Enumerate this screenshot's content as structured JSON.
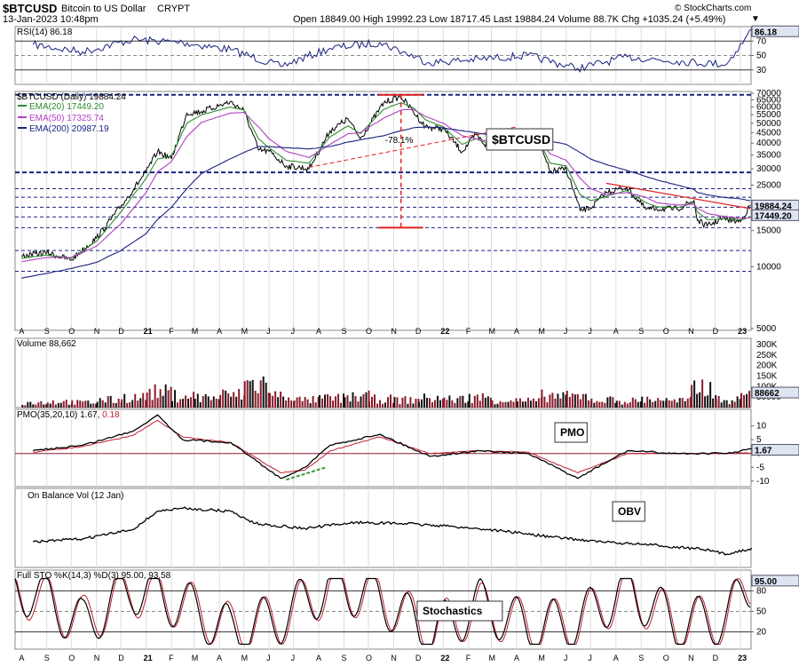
{
  "header": {
    "symbol": "$BTCUSD",
    "name": "Bitcoin to US Dollar",
    "exchange": "CRYPT",
    "datetime": "13-Jan-2023 10:48pm",
    "quote": "Open 18849.00  High 19992.23  Low 18717.45  Last 19884.24  Volume 88.7K  Chg +1035.24 (+5.49%)",
    "credit": "© StockCharts.com"
  },
  "colors": {
    "price": "#000000",
    "ema20": "#2e8b2e",
    "ema50": "#b040c0",
    "ema200": "#1a2280",
    "volume": "#8b1a2a",
    "signal": "#c02030",
    "annotation_red": "#e02020",
    "annotation_green": "#3a9a3a",
    "hline": "#1a2280",
    "panel_bg": "#ffffff",
    "tag_bg": "#dde4f2"
  },
  "chart_data": [
    {
      "panel": "rsi",
      "type": "line",
      "title": "RSI(14) 86.18",
      "last_value_tag": "86.18",
      "ylim": [
        10,
        90
      ],
      "y_ticks": [
        70,
        50,
        30
      ],
      "reference_lines": [
        70,
        50,
        30
      ],
      "x": [
        "2020-08",
        "2020-10",
        "2020-12",
        "2021-02",
        "2021-04",
        "2021-06",
        "2021-08",
        "2021-10",
        "2021-12",
        "2022-02",
        "2022-04",
        "2022-06",
        "2022-08",
        "2022-10",
        "2022-12",
        "2023-01"
      ],
      "values": [
        65,
        55,
        72,
        68,
        58,
        35,
        60,
        68,
        40,
        45,
        50,
        32,
        48,
        42,
        38,
        86
      ]
    },
    {
      "panel": "price",
      "type": "line",
      "title": "$BTCUSD (Daily) 19884.24",
      "label_box": "$BTCUSD",
      "scale": "log",
      "ylim": [
        5000,
        70000
      ],
      "y_ticks": [
        70000,
        65000,
        60000,
        55000,
        50000,
        45000,
        40000,
        35000,
        30000,
        25000,
        20000,
        15000,
        10000,
        5000
      ],
      "tags": [
        "19884.24",
        "17449.20"
      ],
      "x": [
        "2020-08-01",
        "2020-09-01",
        "2020-10-01",
        "2020-11-01",
        "2020-12-01",
        "2021-01-01",
        "2021-01-15",
        "2021-02-01",
        "2021-02-20",
        "2021-03-10",
        "2021-04-14",
        "2021-05-01",
        "2021-05-19",
        "2021-06-01",
        "2021-06-22",
        "2021-07-20",
        "2021-08-15",
        "2021-09-06",
        "2021-09-21",
        "2021-10-20",
        "2021-11-10",
        "2021-11-25",
        "2021-12-10",
        "2022-01-01",
        "2022-01-24",
        "2022-02-10",
        "2022-02-24",
        "2022-03-28",
        "2022-04-15",
        "2022-05-01",
        "2022-05-12",
        "2022-06-01",
        "2022-06-18",
        "2022-07-01",
        "2022-07-20",
        "2022-08-14",
        "2022-09-07",
        "2022-09-20",
        "2022-10-15",
        "2022-11-05",
        "2022-11-09",
        "2022-11-21",
        "2022-12-10",
        "2023-01-01",
        "2023-01-13"
      ],
      "series": [
        {
          "name": "$BTCUSD",
          "values": [
            11300,
            11700,
            10800,
            13800,
            19700,
            29000,
            36500,
            33500,
            56000,
            57000,
            63500,
            57800,
            37000,
            36500,
            31000,
            30000,
            46000,
            52500,
            42000,
            63000,
            67500,
            57000,
            48000,
            47000,
            36300,
            44000,
            38500,
            47000,
            40000,
            38000,
            29000,
            30000,
            18800,
            19300,
            23000,
            24400,
            19000,
            19200,
            19100,
            21000,
            16800,
            15800,
            17200,
            16600,
            19884
          ]
        },
        {
          "name": "EMA(20) 17449.20",
          "values": [
            11000,
            11400,
            11000,
            13300,
            18500,
            27000,
            33500,
            34500,
            50000,
            55000,
            60000,
            58000,
            42000,
            38000,
            33000,
            32000,
            43000,
            48500,
            44500,
            58500,
            63000,
            59500,
            52000,
            48000,
            39500,
            42000,
            40000,
            44500,
            42000,
            39500,
            32000,
            31000,
            22500,
            21000,
            22000,
            23500,
            20500,
            19600,
            19400,
            20400,
            18500,
            17000,
            17100,
            16900,
            17449
          ]
        },
        {
          "name": "EMA(50) 17325.74",
          "values": [
            10600,
            11100,
            11100,
            12600,
            16200,
            23000,
            29000,
            32500,
            43000,
            50500,
            56000,
            56500,
            48000,
            42000,
            36500,
            34000,
            39500,
            44500,
            45000,
            53000,
            58000,
            58500,
            54000,
            50000,
            43500,
            42000,
            41000,
            42500,
            42000,
            40500,
            35500,
            33000,
            27000,
            24000,
            22500,
            23000,
            21800,
            20500,
            20000,
            20200,
            19300,
            18200,
            17600,
            17200,
            17326
          ]
        },
        {
          "name": "EMA(200) 20987.19",
          "values": [
            8800,
            9300,
            9800,
            10500,
            12000,
            14500,
            17000,
            19500,
            24000,
            28500,
            33500,
            36000,
            38500,
            38500,
            38000,
            37500,
            38500,
            40500,
            41500,
            43500,
            46000,
            47500,
            48000,
            47500,
            46000,
            45000,
            44000,
            44000,
            43500,
            42500,
            41000,
            39500,
            36000,
            33500,
            31500,
            29500,
            27500,
            26500,
            25000,
            23800,
            23000,
            22400,
            21800,
            21400,
            20987
          ]
        }
      ],
      "reference_lines": [
        68789,
        28800,
        24000,
        21800,
        19500,
        17500,
        15500,
        12000,
        9500
      ],
      "annotations": [
        "-78.1%"
      ]
    },
    {
      "panel": "volume",
      "type": "bar",
      "title": "Volume 88,662",
      "last_value_tag": "88662",
      "y_ticks": [
        "300K",
        "250K",
        "200K",
        "150K",
        "100K",
        "50000"
      ],
      "ylim": [
        0,
        330000
      ],
      "x": [
        "2020-08",
        "2020-09",
        "2020-10",
        "2020-11",
        "2020-12",
        "2021-01",
        "2021-02",
        "2021-03",
        "2021-04",
        "2021-05",
        "2021-06",
        "2021-07",
        "2021-08",
        "2021-09",
        "2021-10",
        "2021-11",
        "2021-12",
        "2022-01",
        "2022-02",
        "2022-03",
        "2022-04",
        "2022-05",
        "2022-06",
        "2022-07",
        "2022-08",
        "2022-09",
        "2022-10",
        "2022-11",
        "2022-12",
        "2023-01"
      ],
      "values": [
        30000,
        35000,
        30000,
        45000,
        60000,
        90000,
        70000,
        60000,
        75000,
        140000,
        70000,
        45000,
        55000,
        65000,
        50000,
        45000,
        55000,
        50000,
        60000,
        45000,
        40000,
        70000,
        65000,
        45000,
        40000,
        50000,
        40000,
        120000,
        45000,
        88662
      ]
    },
    {
      "panel": "pmo",
      "type": "line",
      "title": "PMO(35,20,10) 1.67, 0.18",
      "label_box": "PMO",
      "last_value_tag": "1.67",
      "y_ticks": [
        10,
        5,
        0,
        -5,
        -10
      ],
      "ylim": [
        -12,
        16
      ],
      "x": [
        "2020-08",
        "2020-10",
        "2020-12",
        "2021-01",
        "2021-02",
        "2021-04",
        "2021-06",
        "2021-07",
        "2021-08",
        "2021-10",
        "2021-12",
        "2022-02",
        "2022-04",
        "2022-06",
        "2022-08",
        "2022-10",
        "2022-12",
        "2023-01"
      ],
      "series": [
        {
          "name": "PMO",
          "values": [
            1,
            3,
            8,
            14,
            5,
            4,
            -9,
            -5,
            3,
            7,
            -1,
            1,
            0,
            -9,
            1,
            0,
            0,
            1.67
          ]
        },
        {
          "name": "Signal",
          "values": [
            0.5,
            2.5,
            6.5,
            12,
            6,
            4,
            -7,
            -6,
            1,
            6,
            0,
            1,
            0.5,
            -7,
            0,
            0,
            0,
            0.18
          ]
        }
      ]
    },
    {
      "panel": "obv",
      "type": "line",
      "title": "On Balance Vol (12 Jan)",
      "label_box": "OBV",
      "x": [
        "2020-08",
        "2020-10",
        "2020-12",
        "2021-01",
        "2021-02",
        "2021-04",
        "2021-05",
        "2021-07",
        "2021-09",
        "2021-11",
        "2022-01",
        "2022-03",
        "2022-05",
        "2022-07",
        "2022-09",
        "2022-11",
        "2022-12",
        "2023-01"
      ],
      "values": [
        0.3,
        0.35,
        0.5,
        0.8,
        0.85,
        0.8,
        0.6,
        0.52,
        0.62,
        0.6,
        0.55,
        0.48,
        0.38,
        0.3,
        0.25,
        0.18,
        0.1,
        0.2
      ]
    },
    {
      "panel": "stochastics",
      "type": "line",
      "title": "Full STO %K(14,3) %D(3) 95.00, 93.58",
      "label_box": "Stochastics",
      "last_value_tag": "95.00",
      "y_ticks": [
        80,
        50,
        20
      ],
      "ylim": [
        0,
        100
      ],
      "reference_lines": [
        80,
        20
      ],
      "x": [
        "2020-08",
        "2020-10",
        "2020-12",
        "2021-02",
        "2021-04",
        "2021-06",
        "2021-08",
        "2021-10",
        "2021-12",
        "2022-02",
        "2022-04",
        "2022-06",
        "2022-08",
        "2022-10",
        "2022-12",
        "2023-01"
      ],
      "series": [
        {
          "name": "%K",
          "values": [
            80,
            30,
            85,
            60,
            20,
            40,
            90,
            70,
            15,
            60,
            25,
            35,
            85,
            30,
            40,
            95
          ]
        },
        {
          "name": "%D",
          "values": [
            75,
            35,
            80,
            62,
            25,
            38,
            85,
            72,
            20,
            55,
            28,
            33,
            80,
            32,
            38,
            93.58
          ]
        }
      ]
    }
  ],
  "x_axis": {
    "month_labels": [
      "A",
      "S",
      "O",
      "N",
      "D",
      "21",
      "F",
      "M",
      "A",
      "M",
      "J",
      "J",
      "A",
      "S",
      "O",
      "N",
      "D",
      "22",
      "F",
      "M",
      "A",
      "M",
      "J",
      "J",
      "A",
      "S",
      "O",
      "N",
      "D",
      "23"
    ]
  }
}
